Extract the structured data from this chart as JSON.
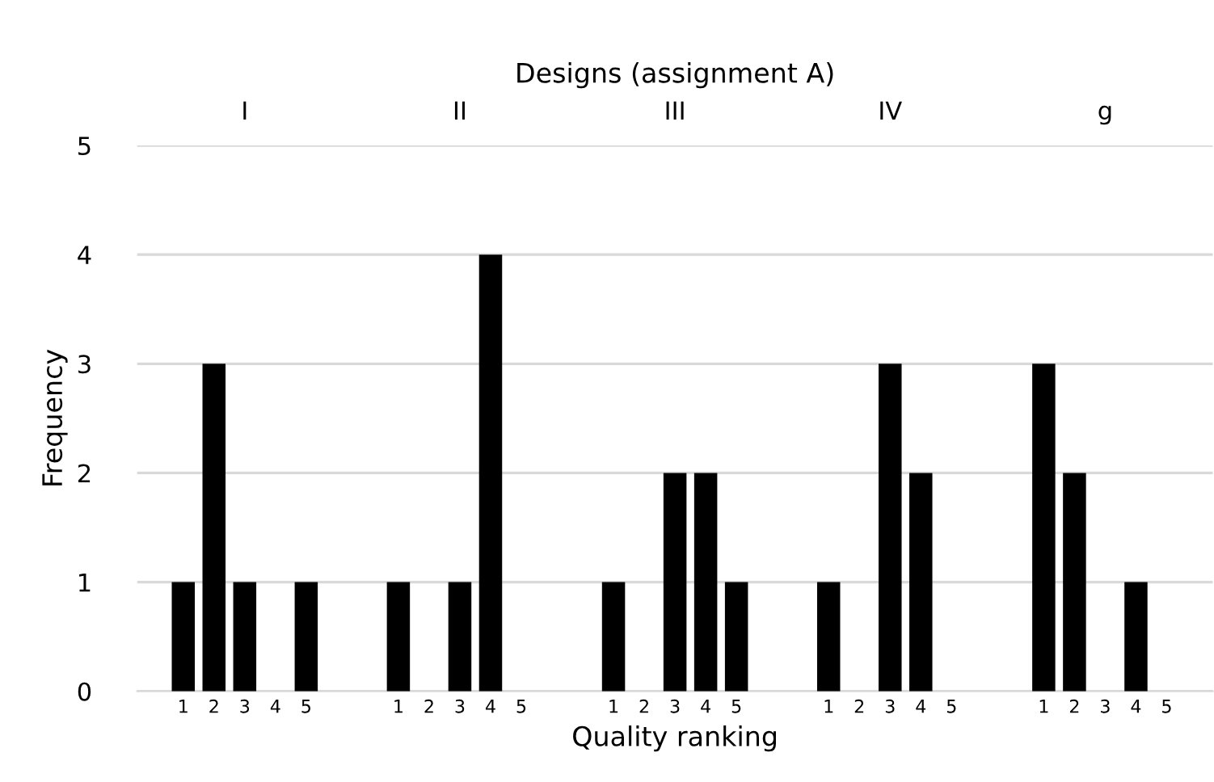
{
  "chart_data": {
    "type": "bar",
    "title": "Designs (assignment A)",
    "xlabel": "Quality ranking",
    "ylabel": "Frequency",
    "categories": [
      null,
      "1",
      "2",
      "3",
      "4",
      "5",
      null,
      null,
      "1",
      "2",
      "3",
      "4",
      "5",
      null,
      null,
      "1",
      "2",
      "3",
      "4",
      "5",
      null,
      null,
      "1",
      "2",
      "3",
      "4",
      "5",
      null,
      null,
      "1",
      "2",
      "3",
      "4",
      "5",
      null
    ],
    "series": [
      {
        "color": "#000000",
        "values": [
          null,
          1,
          3,
          1,
          0,
          1,
          null,
          null,
          1,
          0,
          1,
          4,
          0,
          null,
          null,
          1,
          0,
          2,
          2,
          1,
          null,
          null,
          1,
          0,
          3,
          2,
          0,
          null,
          null,
          3,
          2,
          0,
          1,
          0,
          null
        ]
      }
    ],
    "annotations": [
      "I",
      "II",
      "III",
      "IV",
      "g"
    ],
    "ylim": [
      0,
      5
    ],
    "yticks": [
      0,
      1,
      2,
      3,
      4,
      5
    ],
    "grid": "y",
    "legend": false
  }
}
